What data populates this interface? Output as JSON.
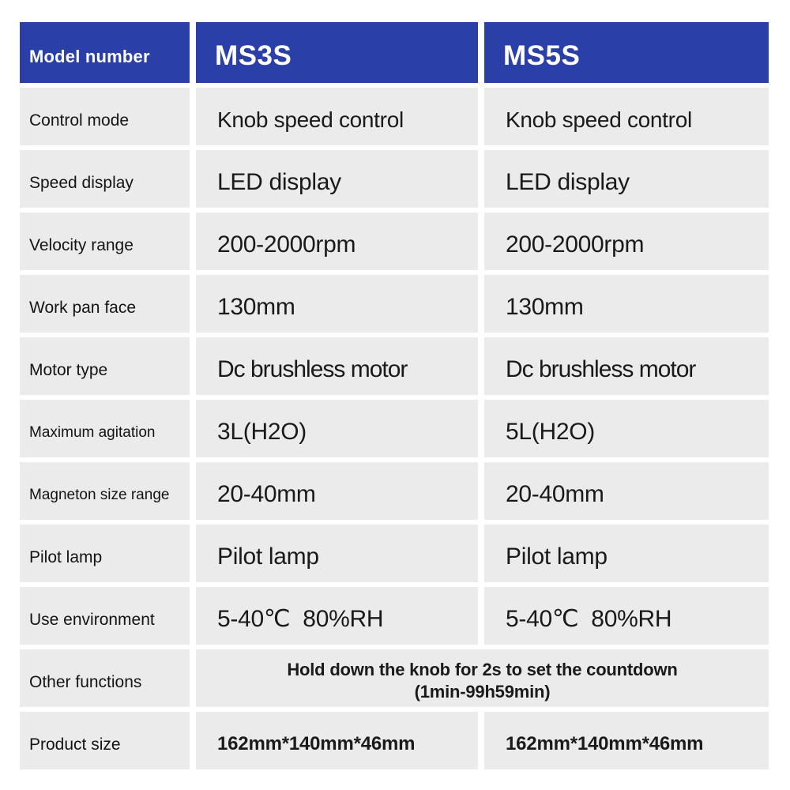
{
  "colors": {
    "accent_blue": "#2b3fa8",
    "cell_gray": "#ebebeb",
    "text_dark": "#1a1a1a",
    "background": "#ffffff"
  },
  "table": {
    "header": {
      "label": "Model number",
      "model1": "MS3S",
      "model2": "MS5S"
    },
    "rows": [
      {
        "label": "Control mode",
        "col1": "Knob speed control",
        "col2": "Knob speed control"
      },
      {
        "label": "Speed display",
        "col1": "LED display",
        "col2": "LED display"
      },
      {
        "label": "Velocity range",
        "col1": "200-2000rpm",
        "col2": "200-2000rpm"
      },
      {
        "label": "Work pan face",
        "col1": "130mm",
        "col2": "130mm"
      },
      {
        "label": "Motor type",
        "col1": "Dc brushless motor",
        "col2": "Dc brushless motor"
      },
      {
        "label": "Maximum agitation",
        "col1": "3L(H2O)",
        "col2": "5L(H2O)"
      },
      {
        "label": "Magneton size range",
        "col1": "20-40mm",
        "col2": "20-40mm"
      },
      {
        "label": "Pilot lamp",
        "col1": "Pilot lamp",
        "col2": "Pilot lamp"
      },
      {
        "label": "Use environment",
        "col1": "5-40℃  80%RH",
        "col2": "5-40℃  80%RH"
      }
    ],
    "other_functions_row": {
      "label": "Other functions",
      "line1": "Hold down the knob for 2s to set the countdown",
      "line2": "(1min-99h59min)"
    },
    "product_size_row": {
      "label": "Product size",
      "col1": "162mm*140mm*46mm",
      "col2": "162mm*140mm*46mm"
    }
  }
}
